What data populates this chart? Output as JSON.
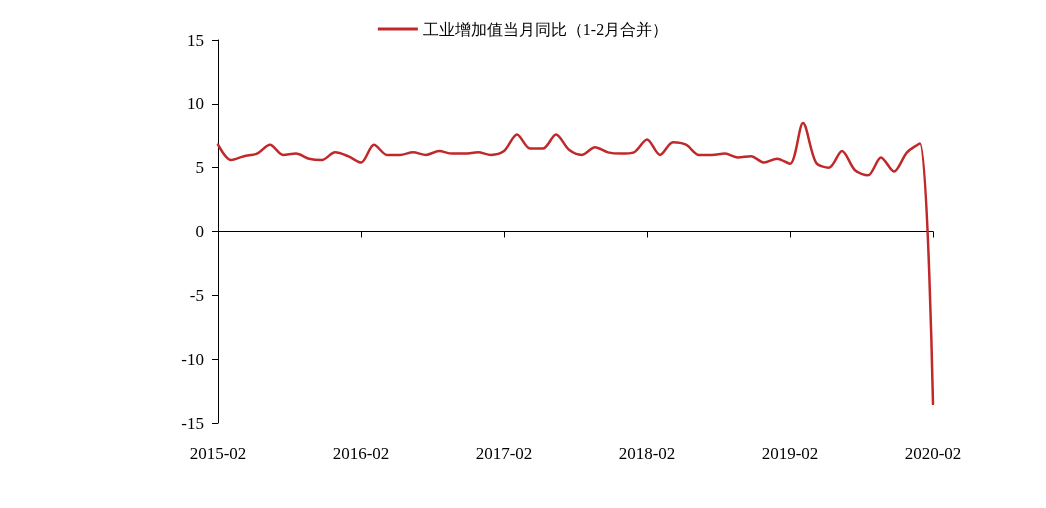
{
  "chart_data": {
    "type": "line",
    "categories": [
      "2015-02",
      null,
      null,
      null,
      null,
      null,
      null,
      null,
      null,
      null,
      null,
      "2016-02",
      null,
      null,
      null,
      null,
      null,
      null,
      null,
      null,
      null,
      null,
      "2017-02",
      null,
      null,
      null,
      null,
      null,
      null,
      null,
      null,
      null,
      null,
      "2018-02",
      null,
      null,
      null,
      null,
      null,
      null,
      null,
      null,
      null,
      null,
      "2019-02",
      null,
      null,
      null,
      null,
      null,
      null,
      null,
      null,
      null,
      null,
      "2020-02"
    ],
    "series": [
      {
        "name": "工业增加值当月同比（1-2月合并）",
        "color": "#c0282a",
        "values": [
          6.8,
          5.6,
          5.9,
          6.1,
          6.8,
          6.0,
          6.1,
          5.7,
          5.6,
          6.2,
          5.9,
          5.4,
          6.8,
          6.0,
          6.0,
          6.2,
          6.0,
          6.3,
          6.1,
          6.1,
          6.2,
          6.0,
          6.3,
          7.6,
          6.5,
          6.5,
          7.6,
          6.4,
          6.0,
          6.6,
          6.2,
          6.1,
          6.2,
          7.2,
          6.0,
          7.0,
          6.8,
          6.0,
          6.0,
          6.1,
          5.8,
          5.9,
          5.4,
          5.7,
          5.3,
          8.5,
          5.4,
          5.0,
          6.3,
          4.8,
          4.4,
          5.8,
          4.7,
          6.2,
          6.9,
          -13.5
        ]
      }
    ],
    "ylim": [
      -15,
      15
    ],
    "yticks": [
      -15,
      -10,
      -5,
      0,
      5,
      10,
      15
    ],
    "legend": "top",
    "marker": "none",
    "line_style": "solid"
  }
}
